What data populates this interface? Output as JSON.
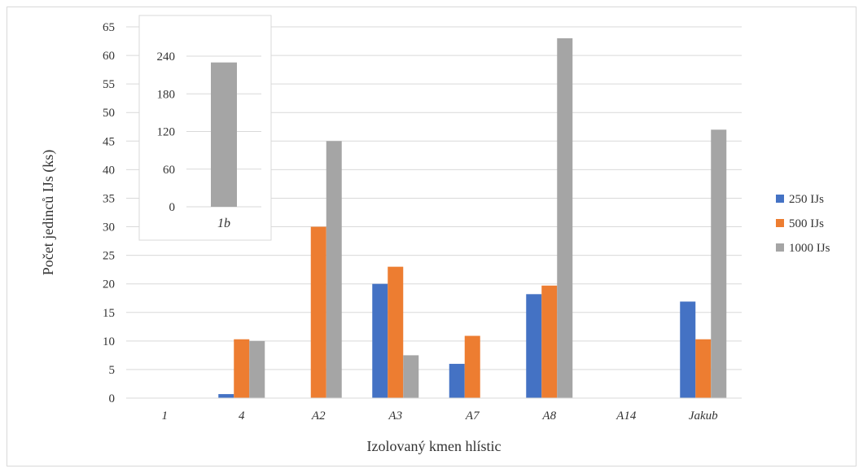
{
  "colors": {
    "s250": "#4472c4",
    "s500": "#ed7d31",
    "s1000": "#a5a5a5",
    "grid": "#d9d9d9",
    "text": "#333333"
  },
  "chart_data": [
    {
      "type": "bar",
      "categories": [
        "1",
        "4",
        "A2",
        "A3",
        "A7",
        "A8",
        "A14",
        "Jakub"
      ],
      "series": [
        {
          "name": "250 IJs",
          "values": [
            0,
            0.7,
            0,
            20,
            6,
            18.2,
            0,
            16.9
          ]
        },
        {
          "name": "500 IJs",
          "values": [
            0,
            10.3,
            30,
            23,
            10.9,
            19.7,
            0,
            10.3
          ]
        },
        {
          "name": "1000 IJs",
          "values": [
            0,
            10,
            45,
            7.5,
            0,
            63,
            0,
            47
          ]
        }
      ],
      "xlabel": "Izolovaný kmen hlístic",
      "ylabel": "Počet jedinců IJs (ks)",
      "ylim": [
        0,
        65
      ],
      "yticks": [
        "0",
        "5",
        "10",
        "15",
        "20",
        "25",
        "30",
        "35",
        "40",
        "45",
        "50",
        "55",
        "60",
        "65"
      ],
      "grid": true,
      "legend": "right"
    },
    {
      "type": "bar",
      "categories": [
        "1b"
      ],
      "series": [
        {
          "name": "1000 IJs",
          "values": [
            230
          ]
        }
      ],
      "ylim": [
        0,
        240
      ],
      "yticks": [
        "0",
        "60",
        "120",
        "180",
        "240"
      ],
      "grid": true,
      "legend": "none"
    }
  ]
}
